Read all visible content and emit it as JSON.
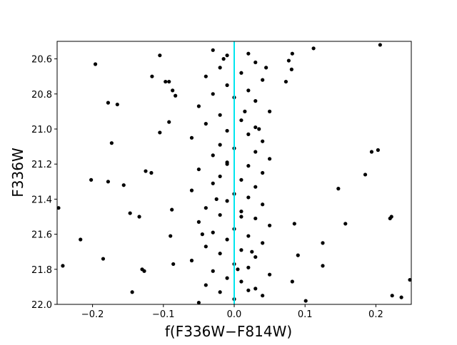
{
  "chart_data": {
    "type": "scatter",
    "xlabel": "f(F336W−F814W)",
    "ylabel": "F336W",
    "xlim": [
      -0.25,
      0.25
    ],
    "ylim": [
      22.0,
      20.5
    ],
    "y_inverted": true,
    "xticks": [
      {
        "value": -0.2,
        "label": "−0.2"
      },
      {
        "value": -0.1,
        "label": "−0.1"
      },
      {
        "value": 0,
        "label": "0.0"
      },
      0.1,
      0.2
    ],
    "yticks": [
      20.6,
      20.8,
      {
        "value": 21.0,
        "label": "21.0"
      },
      21.2,
      21.4,
      21.6,
      21.8,
      {
        "value": 22.0,
        "label": "22.0"
      }
    ],
    "reference_line": {
      "x": 0,
      "color": "#00e5ee"
    },
    "series": [
      {
        "color": "#000000",
        "x": [
          -0.196,
          -0.178,
          -0.165,
          -0.173,
          -0.105,
          -0.116,
          -0.097,
          -0.092,
          -0.087,
          -0.083,
          -0.105,
          -0.092,
          -0.125,
          -0.117,
          -0.202,
          -0.178,
          -0.156,
          -0.248,
          -0.147,
          -0.134,
          -0.088,
          -0.09,
          -0.217,
          -0.185,
          -0.242,
          -0.13,
          -0.127,
          -0.086,
          -0.144,
          0.082,
          0.112,
          0.206,
          0.077,
          0.081,
          0.073,
          0.147,
          0.185,
          0.194,
          0.203,
          0.157,
          0.222,
          0.22,
          0.125,
          0.125,
          0.09,
          0.082,
          0.101,
          0.223,
          0.236,
          0.248,
          0.085,
          -0.03,
          -0.01,
          0.02,
          0.03,
          -0.02,
          0.01,
          -0.04,
          0.04,
          -0.01,
          0.02,
          -0.03,
          0.0,
          0.03,
          -0.05,
          0.05,
          -0.02,
          0.01,
          -0.04,
          0.03,
          -0.01,
          0.02,
          -0.06,
          0.04,
          -0.02,
          0.0,
          0.03,
          -0.03,
          0.05,
          -0.01,
          0.02,
          -0.05,
          0.04,
          -0.02,
          0.01,
          -0.03,
          0.03,
          -0.06,
          0.0,
          0.02,
          -0.01,
          0.04,
          -0.04,
          0.01,
          -0.02,
          0.03,
          -0.05,
          0.05,
          0.0,
          -0.03,
          0.02,
          -0.01,
          0.04,
          -0.04,
          0.01,
          -0.02,
          0.03,
          -0.06,
          0.0,
          0.02,
          -0.03,
          0.05,
          -0.01,
          0.01,
          -0.04,
          0.03,
          -0.02,
          0.04,
          0.0,
          -0.05,
          0.02,
          0.01,
          -0.01,
          0.015,
          -0.015,
          0.005,
          -0.025,
          0.035,
          0.045,
          -0.045,
          0.025
        ],
        "values": [
          20.63,
          20.85,
          20.86,
          21.08,
          20.58,
          20.7,
          20.73,
          20.73,
          20.78,
          20.81,
          21.02,
          20.96,
          21.24,
          21.25,
          21.29,
          21.3,
          21.32,
          21.45,
          21.48,
          21.5,
          21.46,
          21.61,
          21.63,
          21.74,
          21.78,
          21.8,
          21.81,
          21.77,
          21.93,
          20.57,
          20.54,
          20.52,
          20.61,
          20.66,
          20.73,
          21.34,
          21.26,
          21.13,
          21.12,
          21.54,
          21.5,
          21.51,
          21.65,
          21.78,
          21.72,
          21.87,
          21.98,
          21.95,
          21.96,
          21.86,
          21.54,
          20.55,
          20.58,
          20.57,
          20.62,
          20.65,
          20.68,
          20.7,
          20.72,
          20.75,
          20.78,
          20.8,
          20.82,
          20.84,
          20.87,
          20.9,
          20.92,
          20.95,
          20.97,
          20.99,
          21.01,
          21.03,
          21.05,
          21.07,
          21.09,
          21.11,
          21.13,
          21.15,
          21.17,
          21.19,
          21.21,
          21.23,
          21.25,
          21.27,
          21.29,
          21.31,
          21.33,
          21.35,
          21.37,
          21.39,
          21.41,
          21.43,
          21.45,
          21.47,
          21.49,
          21.51,
          21.53,
          21.55,
          21.57,
          21.59,
          21.61,
          21.63,
          21.65,
          21.67,
          21.69,
          21.71,
          21.73,
          21.75,
          21.77,
          21.79,
          21.81,
          21.83,
          21.85,
          21.87,
          21.89,
          21.91,
          21.93,
          21.95,
          21.97,
          21.99,
          21.92,
          21.5,
          21.2,
          20.9,
          20.6,
          21.8,
          21.4,
          21.0,
          20.65,
          21.6,
          21.7
        ]
      }
    ]
  }
}
